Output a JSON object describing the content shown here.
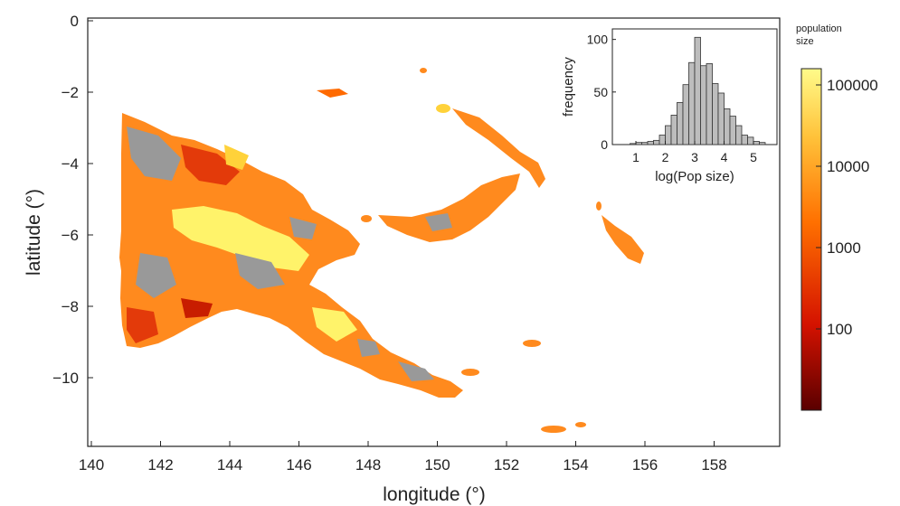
{
  "chart_data": [
    {
      "type": "map",
      "xlabel": "longitude (°)",
      "ylabel": "latitude (°)",
      "xlim": [
        140,
        160
      ],
      "ylim": [
        -12,
        0
      ],
      "xticks": [
        "140",
        "142",
        "144",
        "146",
        "148",
        "150",
        "152",
        "154",
        "156",
        "158"
      ],
      "yticks": [
        "0",
        "−2",
        "−4",
        "−6",
        "−8",
        "−10"
      ],
      "colors": {
        "missing": "#999999",
        "low": "#6e0000",
        "mid": "#ff6a00",
        "high": "#fffb7a"
      },
      "colorbar": {
        "title_line1": "population",
        "title_line2": "size",
        "ticks": [
          "100000",
          "10000",
          "1000",
          "100"
        ],
        "scale": "log"
      }
    },
    {
      "type": "bar",
      "title": "",
      "xlabel": "log(Pop size)",
      "ylabel": "frequency",
      "xticks": [
        "1",
        "2",
        "3",
        "4",
        "5"
      ],
      "yticks": [
        "0",
        "50",
        "100"
      ],
      "ylim": [
        0,
        110
      ],
      "xlim": [
        0.2,
        5.8
      ],
      "bin_width": 0.2,
      "x": [
        0.9,
        1.1,
        1.3,
        1.5,
        1.7,
        1.9,
        2.1,
        2.3,
        2.5,
        2.7,
        2.9,
        3.1,
        3.3,
        3.5,
        3.7,
        3.9,
        4.1,
        4.3,
        4.5,
        4.7,
        4.9,
        5.1,
        5.3
      ],
      "values": [
        1,
        2,
        2,
        3,
        4,
        9,
        18,
        28,
        40,
        57,
        78,
        102,
        75,
        77,
        58,
        49,
        34,
        27,
        18,
        9,
        7,
        3,
        2
      ]
    }
  ]
}
